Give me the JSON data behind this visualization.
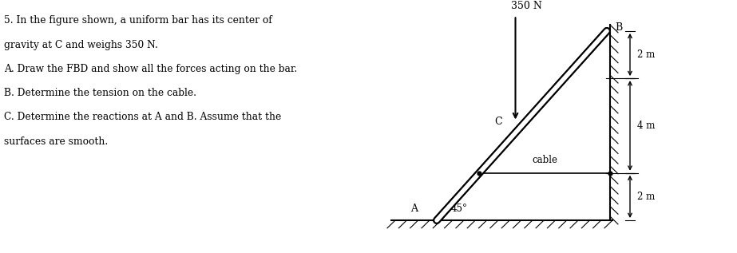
{
  "text_lines": [
    [
      "5. In the figure shown, a uniform bar has its center of",
      false
    ],
    [
      "gravity at C and weighs 350 N.",
      false
    ],
    [
      "A. Draw the FBD and show all the forces acting on the bar.",
      false
    ],
    [
      "B. Determine the tension on the cable.",
      false
    ],
    [
      "C. Determine the reactions at A and B. Assume that the",
      false
    ],
    [
      "surfaces are smooth.",
      false
    ]
  ],
  "fig_bg": "#ffffff",
  "label_350N": "350 N",
  "label_cable": "cable",
  "label_A": "A",
  "label_B": "B",
  "label_C": "C",
  "label_45": "45°",
  "label_2m_top": "2 m",
  "label_4m": "4 m",
  "label_2m_bot": "2 m"
}
